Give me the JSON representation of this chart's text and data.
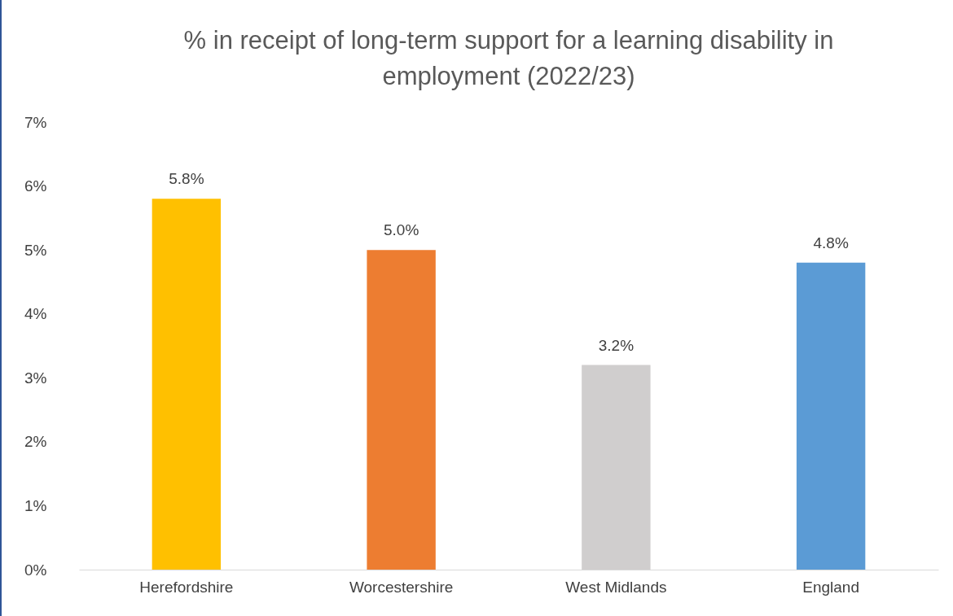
{
  "chart_data": {
    "type": "bar",
    "title": "% in receipt of long-term support for a learning disability in employment (2022/23)",
    "categories": [
      "Herefordshire",
      "Worcestershire",
      "West Midlands",
      "England"
    ],
    "values": [
      5.8,
      5.0,
      3.2,
      4.8
    ],
    "colors": [
      "#ffc000",
      "#ed7d31",
      "#d0cece",
      "#5b9bd5"
    ],
    "value_labels": [
      "5.8%",
      "5.0%",
      "3.2%",
      "4.8%"
    ],
    "ylim": [
      0,
      7
    ],
    "yticks": [
      {
        "value": 0,
        "label": "0%"
      },
      {
        "value": 1,
        "label": "1%"
      },
      {
        "value": 2,
        "label": "2%"
      },
      {
        "value": 3,
        "label": "3%"
      },
      {
        "value": 4,
        "label": "4%"
      },
      {
        "value": 5,
        "label": "5%"
      },
      {
        "value": 6,
        "label": "6%"
      },
      {
        "value": 7,
        "label": "7%"
      }
    ],
    "grid": false
  }
}
